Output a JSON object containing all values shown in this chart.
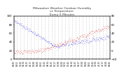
{
  "title": "Milwaukee Weather Outdoor Humidity\nvs Temperature\nEvery 5 Minutes",
  "title_fontsize": 3.2,
  "bg_color": "#ffffff",
  "plot_bg_color": "#ffffff",
  "grid_color": "#aaaaaa",
  "humidity_color": "#0000cc",
  "temp_color": "#cc0000",
  "marker_size": 0.6,
  "ylim_humidity": [
    0,
    100
  ],
  "ylim_temp": [
    -20,
    80
  ],
  "yticks_left": [
    100,
    80,
    60,
    40,
    20,
    0
  ],
  "yticks_right": [
    80,
    60,
    40,
    20,
    0,
    -20
  ],
  "ytick_fontsize": 2.8,
  "xtick_fontsize": 2.0,
  "n_points": 288,
  "n_gridlines": 28
}
